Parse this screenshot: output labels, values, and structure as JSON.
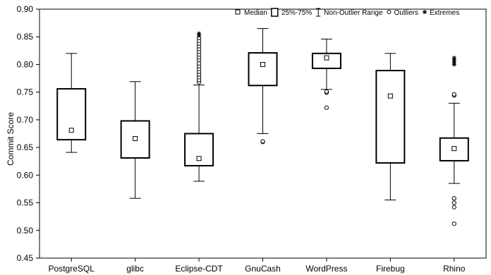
{
  "chart_data": {
    "type": "boxplot",
    "title": "",
    "xlabel": "",
    "ylabel": "Commit Score",
    "ylim": [
      0.45,
      0.9
    ],
    "yticks": [
      "0.45",
      "0.50",
      "0.55",
      "0.60",
      "0.65",
      "0.70",
      "0.75",
      "0.80",
      "0.85",
      "0.90"
    ],
    "grid": false,
    "legend": {
      "placement": "top-right",
      "items": [
        {
          "label": "Median",
          "symbol": "median-square"
        },
        {
          "label": "25%-75%",
          "symbol": "box"
        },
        {
          "label": "Non-Outlier Range",
          "symbol": "whisker"
        },
        {
          "label": "Outliers",
          "symbol": "circle"
        },
        {
          "label": "Extremes",
          "symbol": "star"
        }
      ]
    },
    "categories": [
      "PostgreSQL",
      "glibc",
      "Eclipse-CDT",
      "GnuCash",
      "WordPress",
      "Firebug",
      "Rhino"
    ],
    "series": [
      {
        "category": "PostgreSQL",
        "median": 0.681,
        "q1": 0.664,
        "q3": 0.756,
        "whisker_low": 0.641,
        "whisker_high": 0.82,
        "outliers": [],
        "extremes": []
      },
      {
        "category": "glibc",
        "median": 0.666,
        "q1": 0.631,
        "q3": 0.698,
        "whisker_low": 0.558,
        "whisker_high": 0.769,
        "outliers": [],
        "extremes": []
      },
      {
        "category": "Eclipse-CDT",
        "median": 0.63,
        "q1": 0.617,
        "q3": 0.675,
        "whisker_low": 0.589,
        "whisker_high": 0.763,
        "outliers": [
          0.768,
          0.772,
          0.777,
          0.782,
          0.787,
          0.792,
          0.797,
          0.802,
          0.808,
          0.813,
          0.818,
          0.823,
          0.828,
          0.833,
          0.838,
          0.843,
          0.848
        ],
        "extremes": [
          0.852,
          0.856
        ]
      },
      {
        "category": "GnuCash",
        "median": 0.8,
        "q1": 0.762,
        "q3": 0.821,
        "whisker_low": 0.675,
        "whisker_high": 0.865,
        "outliers": [
          0.66,
          0.661
        ],
        "extremes": []
      },
      {
        "category": "WordPress",
        "median": 0.812,
        "q1": 0.793,
        "q3": 0.82,
        "whisker_low": 0.755,
        "whisker_high": 0.846,
        "outliers": [
          0.749,
          0.751,
          0.722
        ],
        "extremes": []
      },
      {
        "category": "Firebug",
        "median": 0.743,
        "q1": 0.622,
        "q3": 0.789,
        "whisker_low": 0.555,
        "whisker_high": 0.82,
        "outliers": [],
        "extremes": []
      },
      {
        "category": "Rhino",
        "median": 0.648,
        "q1": 0.626,
        "q3": 0.667,
        "whisker_low": 0.585,
        "whisker_high": 0.73,
        "outliers": [
          0.744,
          0.746,
          0.558,
          0.55,
          0.542,
          0.512
        ],
        "extremes": [
          0.812,
          0.808,
          0.804,
          0.8
        ]
      }
    ]
  }
}
